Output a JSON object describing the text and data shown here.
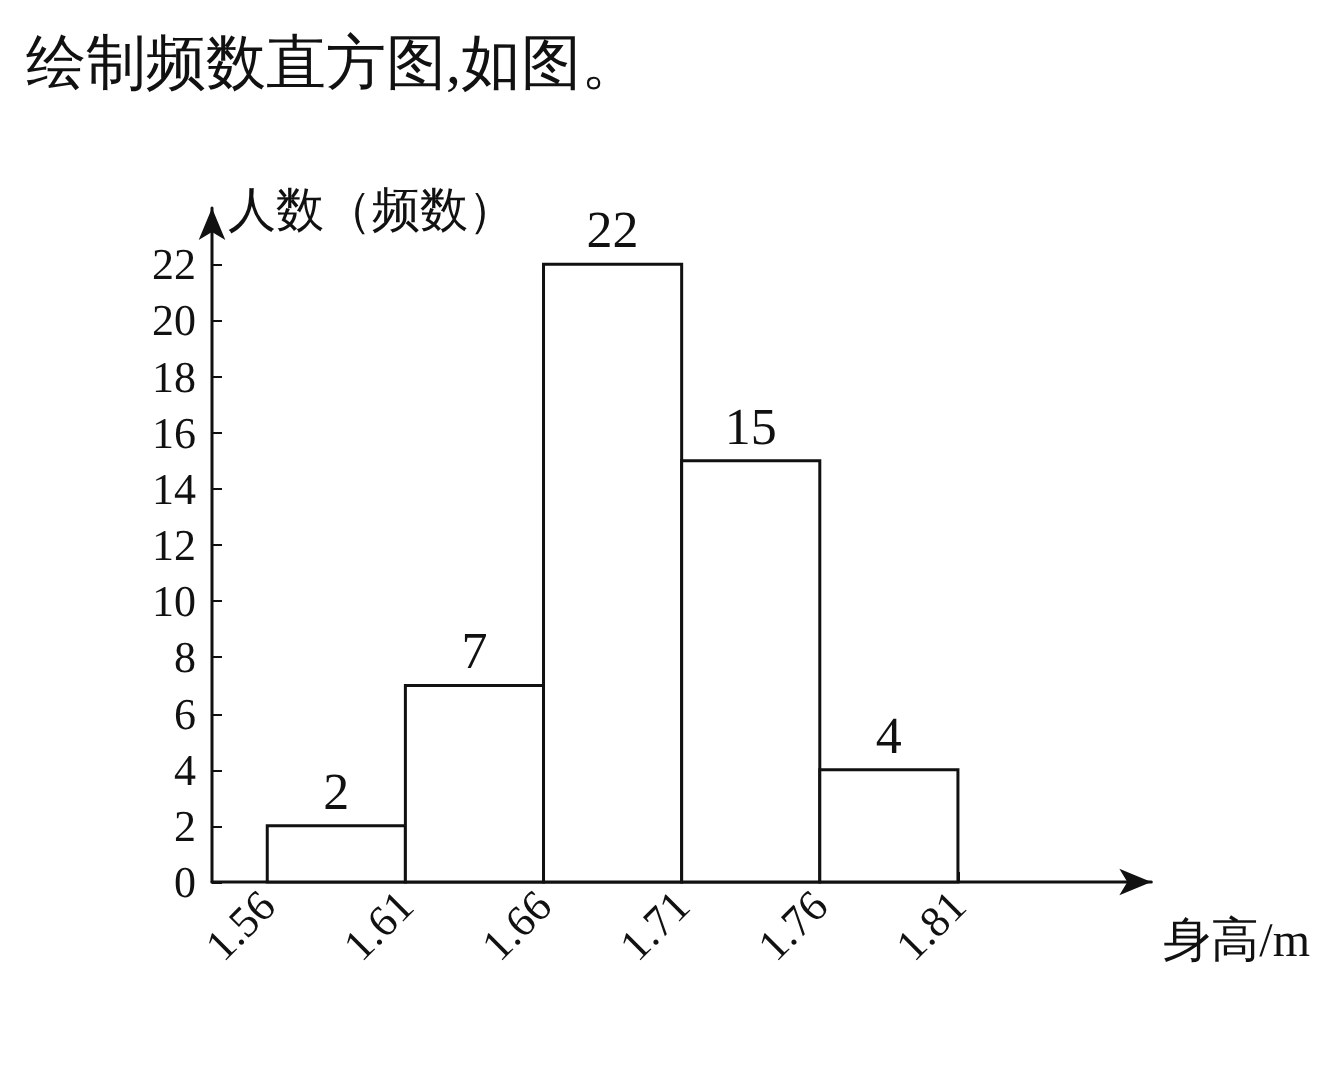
{
  "chart_data": {
    "type": "histogram",
    "title": "绘制频数直方图,如图。",
    "xlabel": "身高/m",
    "ylabel": "人数（频数）",
    "bins": [
      1.56,
      1.61,
      1.66,
      1.71,
      1.76,
      1.81
    ],
    "values": [
      2,
      7,
      22,
      15,
      4
    ],
    "color": "#ffffff",
    "data_labels": true,
    "xlim": [
      1.54,
      1.88
    ],
    "xticks": [
      1.56,
      1.61,
      1.66,
      1.71,
      1.76,
      1.81
    ],
    "ylim": [
      0,
      24
    ],
    "yticks": [
      0,
      2,
      4,
      6,
      8,
      10,
      12,
      14,
      16,
      18,
      20,
      22
    ],
    "grid": false
  }
}
